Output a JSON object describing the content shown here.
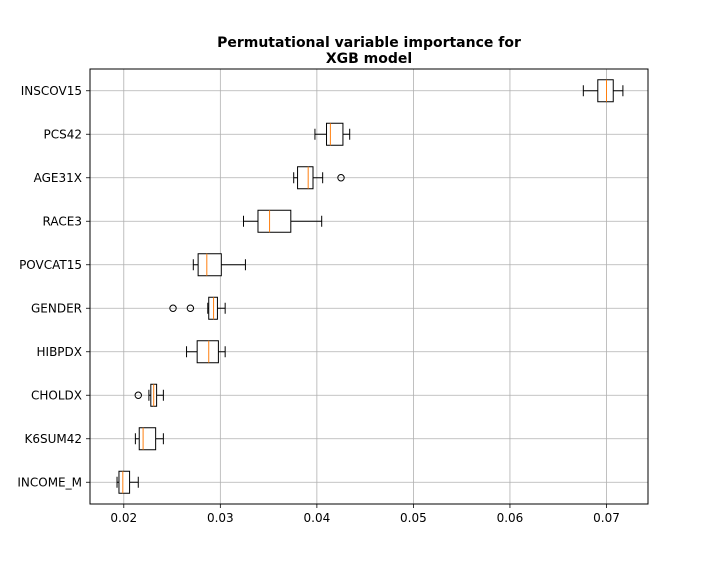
{
  "chart_data": {
    "type": "boxplot",
    "orientation": "horizontal",
    "title_lines": [
      "Permutational variable importance for",
      "XGB model"
    ],
    "xlabel": "",
    "ylabel": "",
    "xlim": [
      0.0165,
      0.0743
    ],
    "x_ticks": [
      0.02,
      0.03,
      0.04,
      0.05,
      0.06,
      0.07
    ],
    "x_tick_labels": [
      "0.02",
      "0.03",
      "0.04",
      "0.05",
      "0.06",
      "0.07"
    ],
    "grid": true,
    "colors": {
      "box": "#000000",
      "median": "#ff7f0e",
      "grid": "#b0b0b0",
      "outlier": "#000000"
    },
    "categories": [
      "INSCOV15",
      "PCS42",
      "AGE31X",
      "RACE3",
      "POVCAT15",
      "GENDER",
      "HIBPDX",
      "CHOLDX",
      "K6SUM42",
      "INCOME_M"
    ],
    "boxes": [
      {
        "label": "INSCOV15",
        "whisker_low": 0.0676,
        "q1": 0.0691,
        "median": 0.07,
        "q3": 0.0707,
        "whisker_high": 0.0717,
        "outliers": []
      },
      {
        "label": "PCS42",
        "whisker_low": 0.0398,
        "q1": 0.041,
        "median": 0.0414,
        "q3": 0.0427,
        "whisker_high": 0.0434,
        "outliers": []
      },
      {
        "label": "AGE31X",
        "whisker_low": 0.0376,
        "q1": 0.038,
        "median": 0.0391,
        "q3": 0.0396,
        "whisker_high": 0.0406,
        "outliers": [
          0.0425
        ]
      },
      {
        "label": "RACE3",
        "whisker_low": 0.0324,
        "q1": 0.0339,
        "median": 0.0351,
        "q3": 0.0373,
        "whisker_high": 0.0405,
        "outliers": []
      },
      {
        "label": "POVCAT15",
        "whisker_low": 0.0272,
        "q1": 0.0277,
        "median": 0.0286,
        "q3": 0.0301,
        "whisker_high": 0.0326,
        "outliers": []
      },
      {
        "label": "GENDER",
        "whisker_low": 0.0287,
        "q1": 0.0288,
        "median": 0.0293,
        "q3": 0.0297,
        "whisker_high": 0.0305,
        "outliers": [
          0.0251,
          0.0269
        ]
      },
      {
        "label": "HIBPDX",
        "whisker_low": 0.0265,
        "q1": 0.0276,
        "median": 0.0288,
        "q3": 0.0298,
        "whisker_high": 0.0305,
        "outliers": []
      },
      {
        "label": "CHOLDX",
        "whisker_low": 0.0226,
        "q1": 0.0228,
        "median": 0.0231,
        "q3": 0.0234,
        "whisker_high": 0.0241,
        "outliers": [
          0.0215
        ]
      },
      {
        "label": "K6SUM42",
        "whisker_low": 0.0212,
        "q1": 0.0216,
        "median": 0.022,
        "q3": 0.0233,
        "whisker_high": 0.0241,
        "outliers": []
      },
      {
        "label": "INCOME_M",
        "whisker_low": 0.0193,
        "q1": 0.0195,
        "median": 0.0199,
        "q3": 0.0206,
        "whisker_high": 0.0215,
        "outliers": []
      }
    ]
  }
}
